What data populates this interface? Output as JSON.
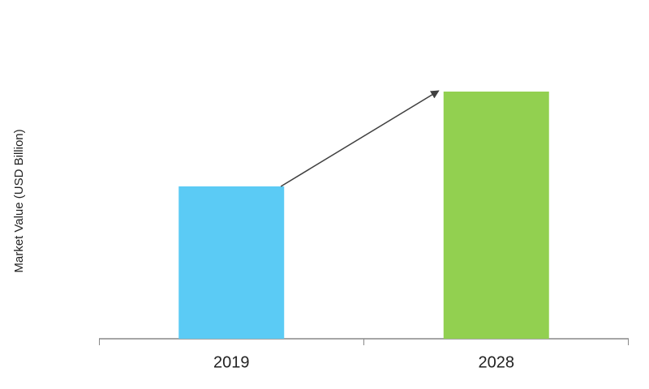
{
  "chart_data": {
    "type": "bar",
    "y_label": "Market Value (USD Billion)",
    "categories": [
      "2019",
      "2028"
    ],
    "values": [
      188,
      305
    ],
    "colors": [
      "#5bcbf5",
      "#92d050"
    ]
  }
}
